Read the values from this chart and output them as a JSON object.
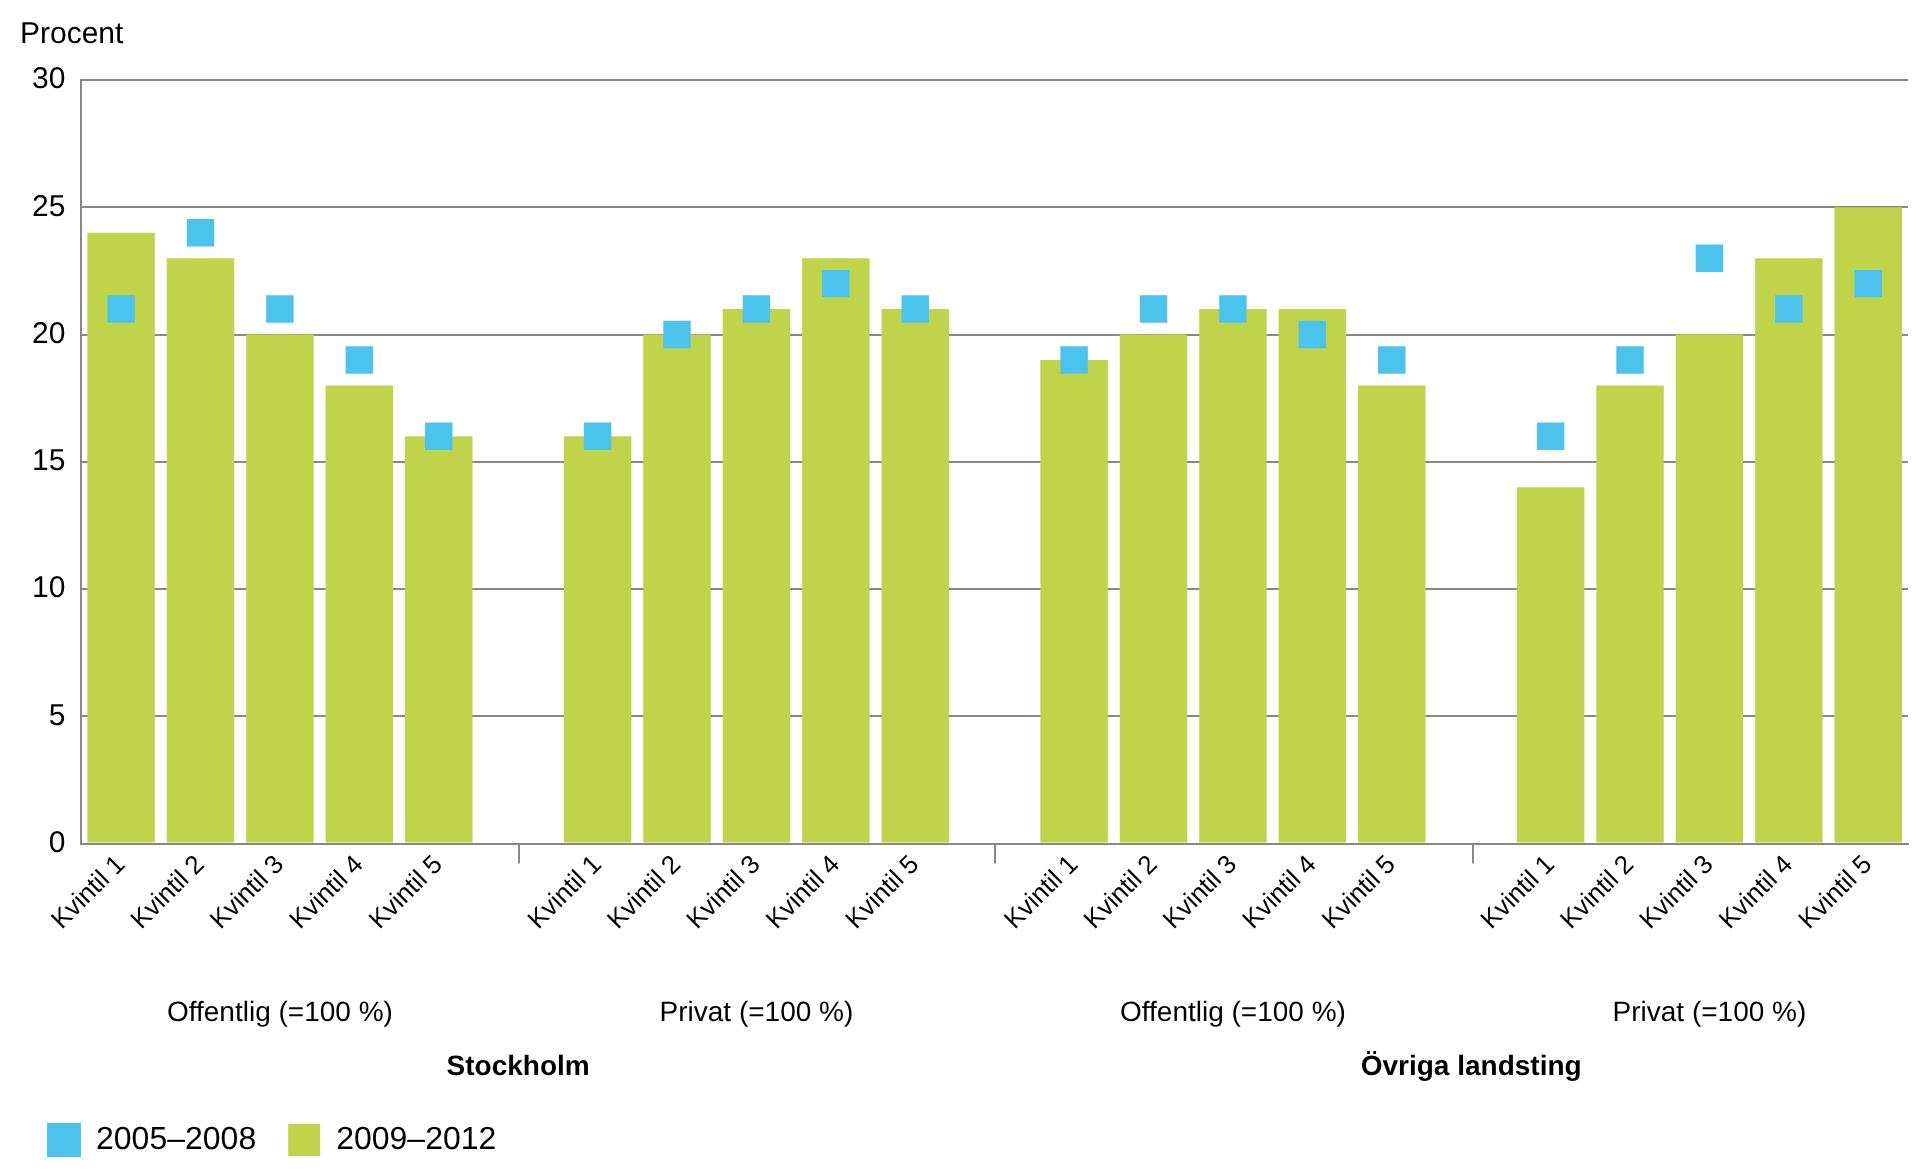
{
  "chart_data": {
    "type": "bar",
    "ylabel": "Procent",
    "categories": [
      "Kvintil 1",
      "Kvintil 2",
      "Kvintil 3",
      "Kvintil 4",
      "Kvintil 5",
      null,
      "Kvintil 1",
      "Kvintil 2",
      "Kvintil 3",
      "Kvintil 4",
      "Kvintil 5",
      null,
      "Kvintil 1",
      "Kvintil 2",
      "Kvintil 3",
      "Kvintil 4",
      "Kvintil 5",
      null,
      "Kvintil 1",
      "Kvintil 2",
      "Kvintil 3",
      "Kvintil 4",
      "Kvintil 5"
    ],
    "series": [
      {
        "name": "2005–2008",
        "type": "scatter",
        "color": "#4cc3ec",
        "values": [
          21,
          24,
          21,
          19,
          16,
          null,
          16,
          20,
          21,
          22,
          21,
          null,
          19,
          21,
          21,
          20,
          19,
          null,
          16,
          19,
          23,
          21,
          22
        ]
      },
      {
        "name": "2009–2012",
        "color": "#bfd44b",
        "values": [
          24,
          23,
          20,
          18,
          16,
          null,
          16,
          20,
          21,
          23,
          21,
          null,
          19,
          20,
          21,
          21,
          18,
          null,
          14,
          18,
          20,
          23,
          25
        ]
      }
    ],
    "ylim": [
      0,
      30
    ],
    "yticks": [
      0,
      5,
      10,
      15,
      20,
      25,
      30
    ],
    "grid": "y",
    "legend": "bottom left",
    "marker": "square",
    "annotations": [
      "Offentlig (=100 %)",
      "Privat (=100 %)",
      "Offentlig (=100 %)",
      "Privat (=100 %)",
      "Stockholm",
      "Övriga landsting"
    ]
  }
}
